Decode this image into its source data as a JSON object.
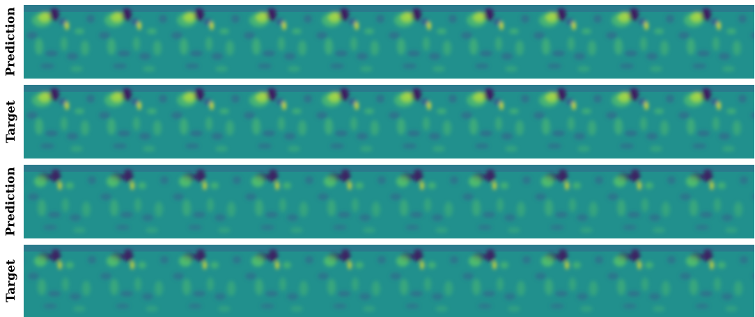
{
  "figure": {
    "rows": [
      {
        "label": "Prediction",
        "variant": "a"
      },
      {
        "label": "Target",
        "variant": "a"
      },
      {
        "label": "Prediction",
        "variant": "b"
      },
      {
        "label": "Target",
        "variant": "b"
      }
    ],
    "colormap": {
      "low": "#440154",
      "mid_low": "#3b528b",
      "mid": "#21908d",
      "mid_high": "#5dc963",
      "high": "#fde725"
    }
  }
}
